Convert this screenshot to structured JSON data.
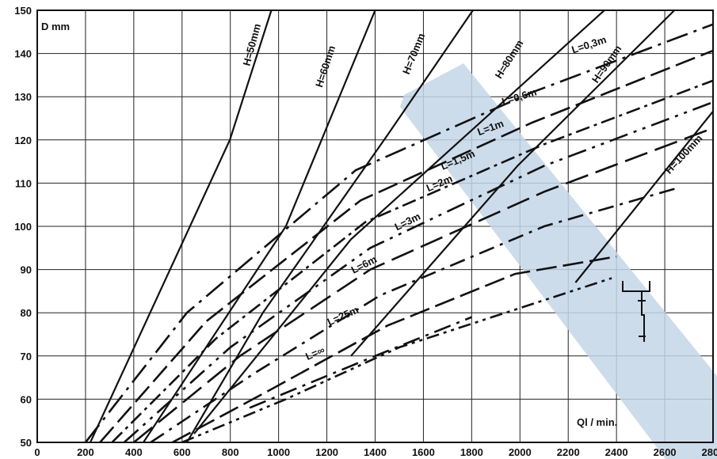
{
  "chart_data": {
    "type": "line",
    "ylabel": "D mm",
    "xlabel": "Ql / min.",
    "xlim": [
      0,
      2800
    ],
    "ylim": [
      50,
      150
    ],
    "x_ticks": [
      0,
      200,
      400,
      600,
      800,
      1000,
      1200,
      1400,
      1600,
      1800,
      2000,
      2200,
      2400,
      2600,
      2800
    ],
    "y_ticks": [
      50,
      60,
      70,
      80,
      90,
      100,
      110,
      120,
      130,
      140,
      150
    ],
    "grid": true,
    "head_series": [
      {
        "label": "H=50mm",
        "points": [
          [
            220,
            50
          ],
          [
            798,
            120
          ],
          [
            970,
            150
          ]
        ]
      },
      {
        "label": "H=60mm",
        "points": [
          [
            440,
            50
          ],
          [
            1030,
            100
          ],
          [
            1400,
            150
          ]
        ]
      },
      {
        "label": "H=70mm",
        "points": [
          [
            620,
            50
          ],
          [
            935,
            80
          ],
          [
            1450,
            121
          ],
          [
            1805,
            150
          ]
        ]
      },
      {
        "label": "H=80mm",
        "points": [
          [
            650,
            52
          ],
          [
            1300,
            97
          ],
          [
            2350,
            150
          ]
        ]
      },
      {
        "label": "H=90mm",
        "points": [
          [
            1300,
            70
          ],
          [
            1990,
            114
          ],
          [
            2640,
            150
          ]
        ]
      },
      {
        "label": "H=100mm",
        "points": [
          [
            2230,
            87
          ],
          [
            2820,
            128
          ]
        ]
      }
    ],
    "length_series": [
      {
        "label": "L=0,3m",
        "points": [
          [
            200,
            50
          ],
          [
            620,
            80
          ],
          [
            1320,
            113
          ],
          [
            2050,
            131
          ],
          [
            2860,
            148
          ]
        ]
      },
      {
        "label": "L=0,6m",
        "points": [
          [
            260,
            50
          ],
          [
            700,
            78
          ],
          [
            1340,
            106
          ],
          [
            2050,
            124
          ],
          [
            2860,
            142
          ]
        ]
      },
      {
        "label": "L=1m",
        "points": [
          [
            310,
            50
          ],
          [
            740,
            74
          ],
          [
            1360,
            101
          ],
          [
            2100,
            119
          ],
          [
            2860,
            135
          ]
        ]
      },
      {
        "label": "L=1,5m",
        "points": [
          [
            360,
            50
          ],
          [
            800,
            72
          ],
          [
            1380,
            95
          ],
          [
            2100,
            114
          ],
          [
            2860,
            130
          ]
        ]
      },
      {
        "label": "L=2m",
        "points": [
          [
            400,
            50
          ],
          [
            840,
            70
          ],
          [
            1380,
            90
          ],
          [
            2100,
            108
          ],
          [
            2860,
            124
          ]
        ]
      },
      {
        "label": "L=3m",
        "points": [
          [
            470,
            50
          ],
          [
            900,
            66
          ],
          [
            1420,
            84
          ],
          [
            2100,
            100
          ],
          [
            2660,
            109
          ]
        ]
      },
      {
        "label": "L=6m",
        "points": [
          [
            560,
            50
          ],
          [
            960,
            62
          ],
          [
            1450,
            77
          ],
          [
            1980,
            89
          ],
          [
            2400,
            93
          ]
        ]
      },
      {
        "label": "L=25m",
        "points": [
          [
            600,
            50
          ],
          [
            1030,
            60
          ],
          [
            1500,
            72
          ],
          [
            2380,
            88
          ]
        ]
      },
      {
        "label": "L=∞",
        "points": [
          [
            880,
            58
          ],
          [
            1400,
            70
          ],
          [
            1800,
            79
          ]
        ]
      }
    ]
  }
}
